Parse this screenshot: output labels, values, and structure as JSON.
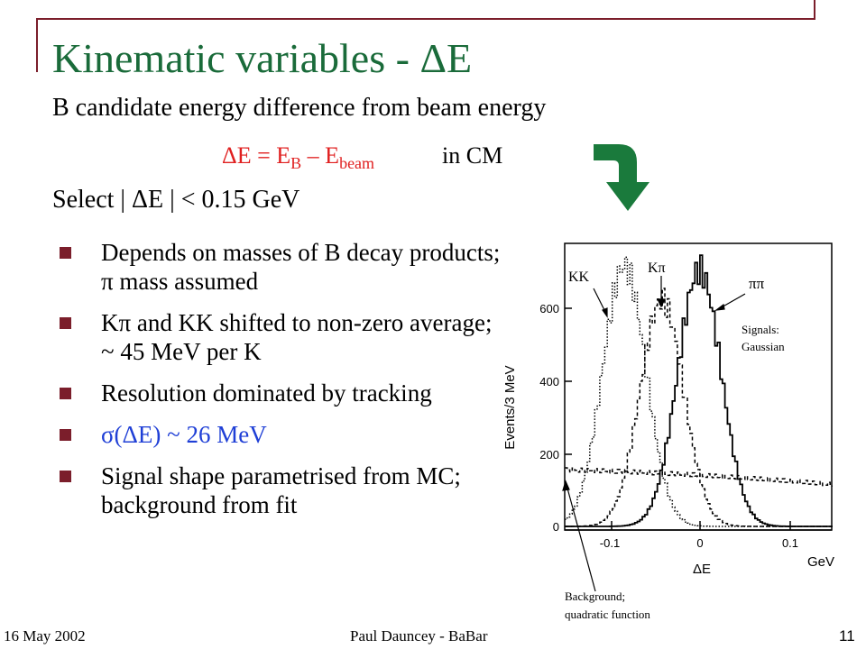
{
  "slide": {
    "title": "Kinematic variables - ΔE",
    "subtitle": "B candidate energy difference from beam energy",
    "formula": {
      "lhs": "ΔE = E",
      "sub1": "B",
      "mid": " – E",
      "sub2": "beam"
    },
    "formula_suffix": "in CM",
    "select_text": "Select | ΔE | < 0.15 GeV",
    "bullets": [
      "Depends on masses of B decay products; π mass assumed",
      "Kπ and KK shifted to non-zero average; ~ 45 MeV per K",
      "Resolution dominated by tracking",
      "σ(ΔE) ~ 26 MeV",
      "Signal shape parametrised from MC; background from fit"
    ],
    "arrow_icon": "curved-down-arrow-icon",
    "accent_color": "#1a6b3a",
    "bullet_color": "#7b1e2b",
    "formula_color": "#e02020",
    "highlight_color": "#1f3fd6"
  },
  "figure": {
    "ylabel": "Events/3 MeV",
    "xlabel": "ΔE",
    "xunit": "GeV",
    "yticks": [
      "0",
      "200",
      "400",
      "600"
    ],
    "xticks": [
      "-0.1",
      "0",
      "0.1"
    ],
    "labels": {
      "kk": "KK",
      "kpi": "Kπ",
      "pipi": "ππ",
      "signals_line1": "Signals:",
      "signals_line2": "Gaussian",
      "background_line1": "Background;",
      "background_line2": "quadratic function"
    }
  },
  "chart_data": {
    "type": "line",
    "title": "",
    "xlabel": "ΔE",
    "xunit": "GeV",
    "ylabel": "Events/3 MeV",
    "xlim": [
      -0.16,
      0.16
    ],
    "ylim": [
      0,
      750
    ],
    "series": [
      {
        "name": "KK",
        "style": "dotted",
        "peak_x": -0.09,
        "peak_y": 690,
        "sigma": 0.026
      },
      {
        "name": "Kπ",
        "style": "dashed",
        "peak_x": -0.045,
        "peak_y": 600,
        "sigma": 0.026
      },
      {
        "name": "ππ",
        "style": "solid",
        "peak_x": 0.0,
        "peak_y": 680,
        "sigma": 0.026
      },
      {
        "name": "Background",
        "style": "dashed",
        "x": [
          -0.16,
          0.0,
          0.16
        ],
        "values": [
          150,
          135,
          110
        ]
      }
    ]
  },
  "footer": {
    "date": "16 May 2002",
    "author": "Paul Dauncey - BaBar",
    "page": "11"
  }
}
